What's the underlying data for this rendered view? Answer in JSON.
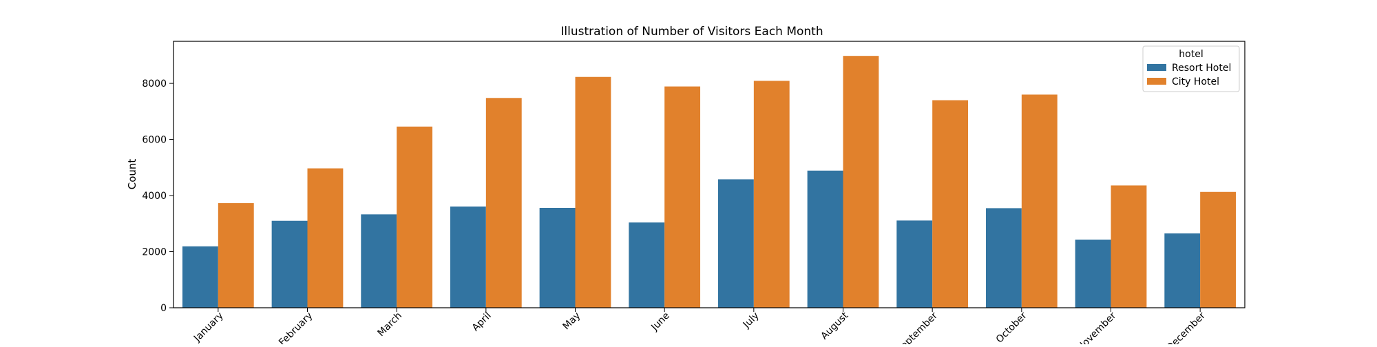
{
  "chart_data": {
    "type": "bar",
    "title": "Illustration of Number of Visitors Each Month",
    "xlabel": "",
    "ylabel": "Count",
    "categories": [
      "January",
      "February",
      "March",
      "April",
      "May",
      "June",
      "July",
      "August",
      "September",
      "October",
      "November",
      "December"
    ],
    "series": [
      {
        "name": "Resort Hotel",
        "color": "#3274a1",
        "values": [
          2190,
          3100,
          3330,
          3610,
          3560,
          3040,
          4580,
          4890,
          3110,
          3550,
          2430,
          2650
        ]
      },
      {
        "name": "City Hotel",
        "color": "#e1812c",
        "values": [
          3730,
          4970,
          6460,
          7480,
          8230,
          7890,
          8090,
          8980,
          7400,
          7600,
          4360,
          4130
        ]
      }
    ],
    "ylim": [
      0,
      9500
    ],
    "yticks": [
      0,
      2000,
      4000,
      6000,
      8000
    ],
    "grid": false,
    "legend": {
      "title": "hotel",
      "placement": "top-right"
    }
  }
}
